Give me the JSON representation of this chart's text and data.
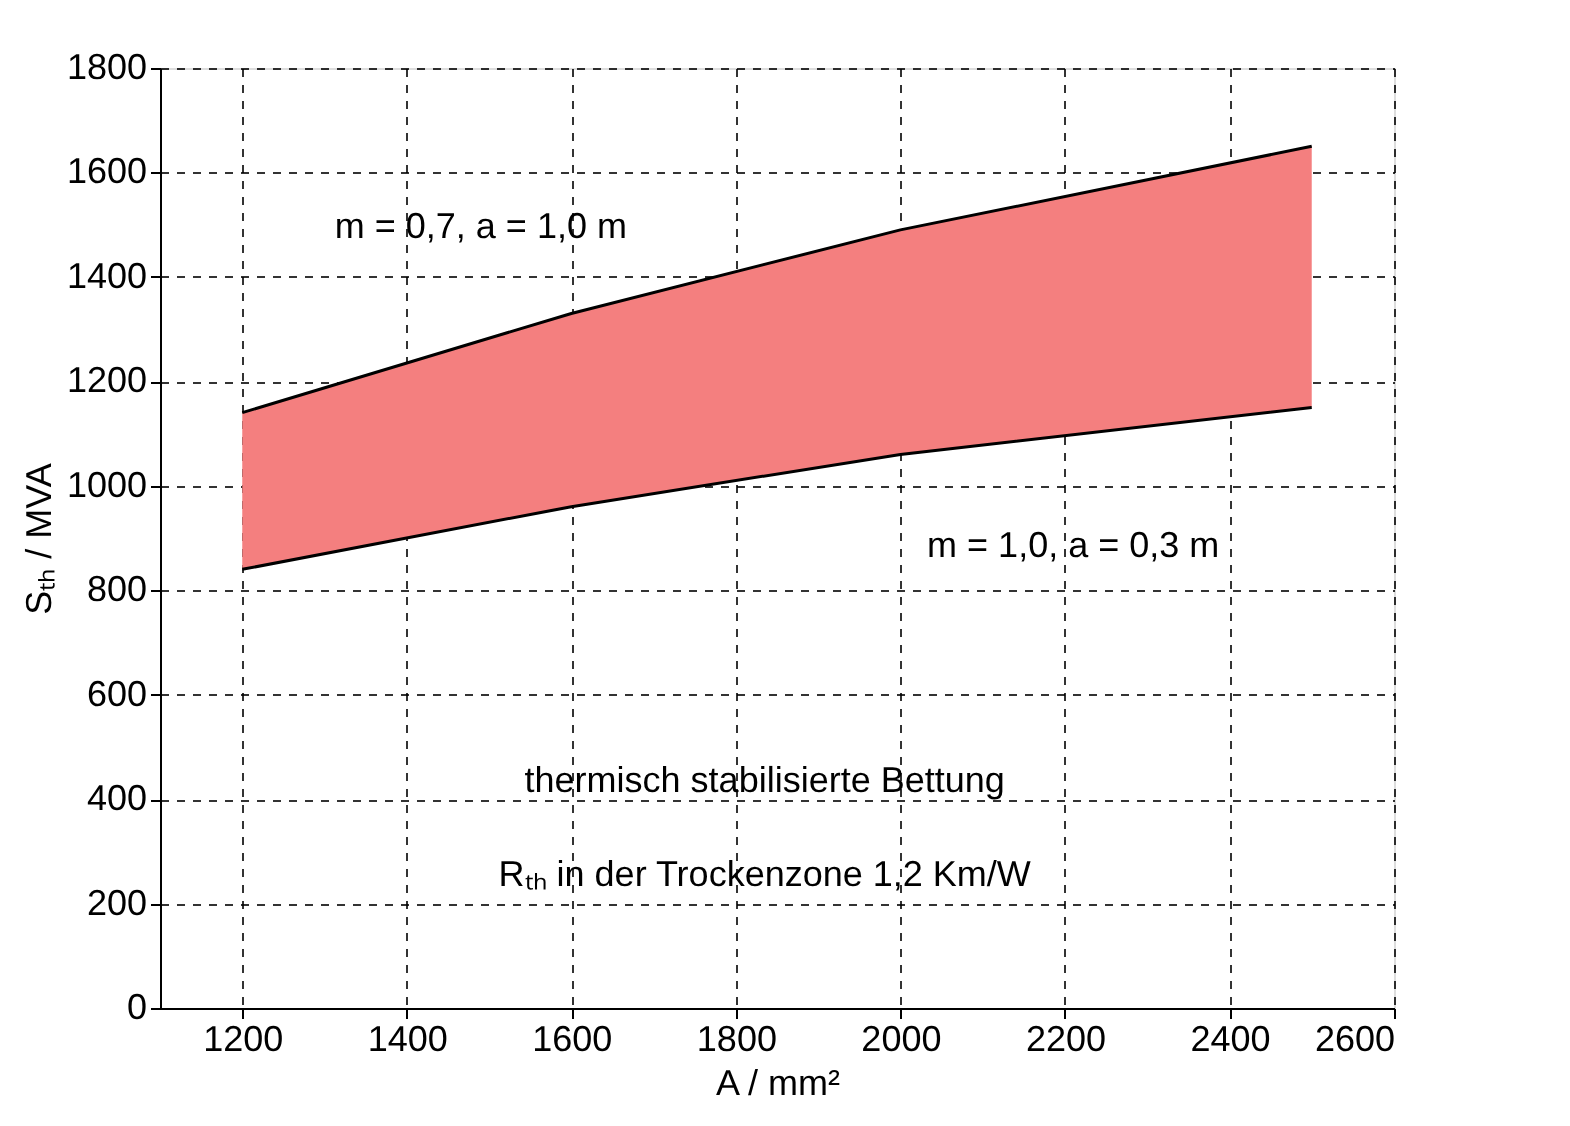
{
  "chart_data": {
    "type": "area",
    "xlabel": "A / mm²",
    "ylabel": "Sₜₕ / MVA",
    "x": [
      1200,
      1600,
      2000,
      2500
    ],
    "series": [
      {
        "type": "line",
        "color": "#000000",
        "values": [
          840,
          960,
          1060,
          1150
        ]
      },
      {
        "color": "#f47f7f",
        "values": [
          1140,
          1330,
          1490,
          1650
        ]
      }
    ],
    "xlim": [
      1100,
      2600
    ],
    "xticks": [
      1200,
      1400,
      1600,
      1800,
      2000,
      2200,
      2400,
      2600
    ],
    "ylim": [
      0,
      1800
    ],
    "yticks": [
      0,
      200,
      400,
      600,
      800,
      1000,
      1200,
      1400,
      1600,
      1800
    ],
    "grid": true,
    "annotations": [
      "m = 0,7, a = 1,0 m",
      "m = 1,0, a = 0,3 m",
      "thermisch stabilisierte Bettung",
      "Rₜₕ in der Trockenzone 1,2 Km/W"
    ]
  }
}
